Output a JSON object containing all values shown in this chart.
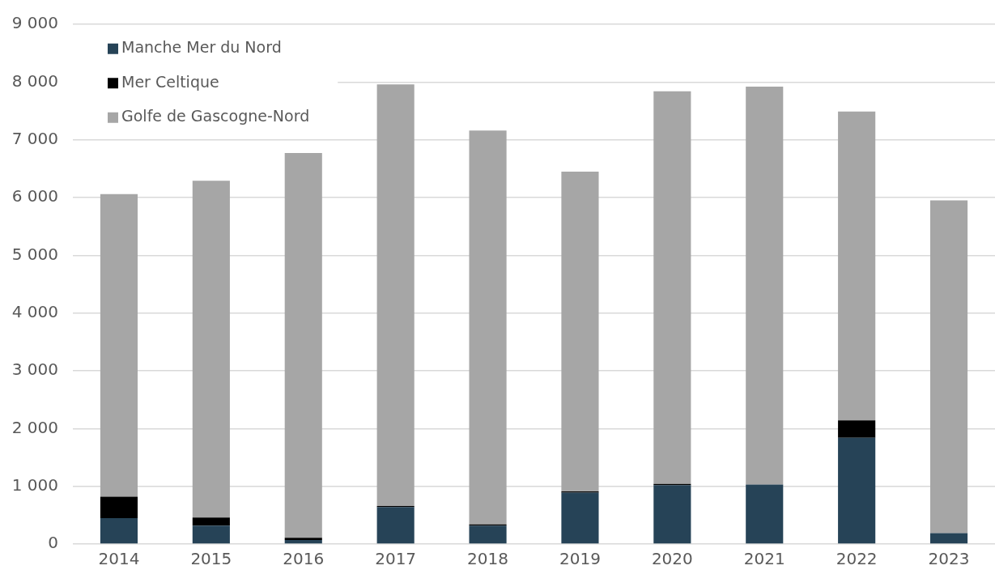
{
  "chart_data": {
    "type": "bar",
    "categories": [
      "2014",
      "2015",
      "2016",
      "2017",
      "2018",
      "2019",
      "2020",
      "2021",
      "2022",
      "2023"
    ],
    "stacked": true,
    "series": [
      {
        "name": "Manche Mer du Nord",
        "color": "#264357",
        "values": [
          450,
          320,
          70,
          640,
          320,
          890,
          1020,
          1030,
          1840,
          190
        ]
      },
      {
        "name": "Mer Celtique",
        "color": "#000000",
        "values": [
          370,
          140,
          40,
          20,
          20,
          20,
          20,
          null,
          300,
          null
        ]
      },
      {
        "name": "Golfe de Gascogne-Nord",
        "color": "#a6a6a6",
        "values": [
          5240,
          5830,
          6660,
          7300,
          6820,
          5540,
          6800,
          6890,
          5350,
          5760
        ]
      }
    ],
    "ylim": [
      0,
      9000
    ],
    "yticks": [
      0,
      {
        "value": 1000,
        "label": "1 000"
      },
      {
        "value": 2000,
        "label": "2 000"
      },
      {
        "value": 3000,
        "label": "3 000"
      },
      {
        "value": 4000,
        "label": "4 000"
      },
      {
        "value": 5000,
        "label": "5 000"
      },
      {
        "value": 6000,
        "label": "6 000"
      },
      {
        "value": 7000,
        "label": "7 000"
      },
      {
        "value": 8000,
        "label": "8 000"
      },
      {
        "value": 9000,
        "label": "9 000"
      }
    ],
    "grid": "y",
    "legend": "top left"
  }
}
